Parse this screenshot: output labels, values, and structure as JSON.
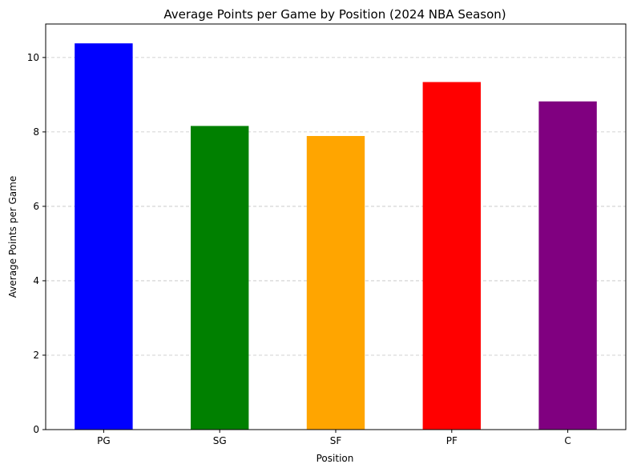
{
  "chart_data": {
    "type": "bar",
    "title": "Average Points per Game by Position (2024 NBA Season)",
    "xlabel": "Position",
    "ylabel": "Average Points per Game",
    "categories": [
      "PG",
      "SG",
      "SF",
      "PF",
      "C"
    ],
    "values": [
      10.38,
      8.16,
      7.89,
      9.34,
      8.82
    ],
    "colors": [
      "#0000ff",
      "#008000",
      "#ffa500",
      "#ff0000",
      "#800080"
    ],
    "ylim": [
      0,
      10.9
    ],
    "yticks": [
      0,
      2,
      4,
      6,
      8,
      10
    ],
    "grid": "y-dashed",
    "legend": "none"
  }
}
